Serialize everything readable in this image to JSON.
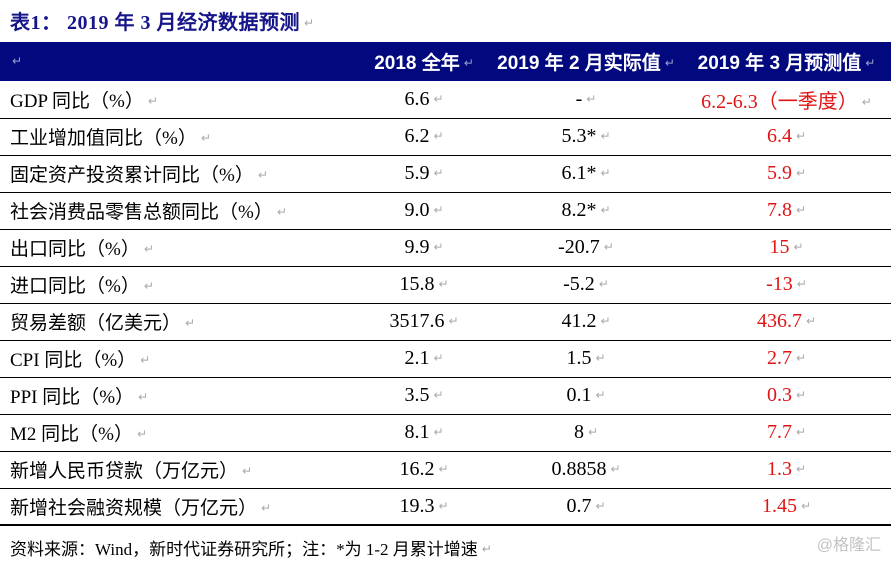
{
  "title": "表1： 2019 年 3 月经济数据预测",
  "colors": {
    "header_bg": "#02087e",
    "title_navy": "#16168a",
    "forecast_red": "#e01414",
    "watermark_gray": "#c2c2c2",
    "row_line": "#000000"
  },
  "icons": {
    "paragraph_mark": "↵"
  },
  "table": {
    "columns": [
      "",
      "2018 全年",
      "2019 年 2 月实际值",
      "2019 年 3 月预测值"
    ],
    "rows": [
      {
        "label": "GDP 同比（%）",
        "y2018": "6.6",
        "feb2019": "-",
        "mar2019": "6.2-6.3（一季度）"
      },
      {
        "label": "工业增加值同比（%）",
        "y2018": "6.2",
        "feb2019": "5.3*",
        "mar2019": "6.4"
      },
      {
        "label": "固定资产投资累计同比（%）",
        "y2018": "5.9",
        "feb2019": "6.1*",
        "mar2019": "5.9"
      },
      {
        "label": "社会消费品零售总额同比（%）",
        "y2018": "9.0",
        "feb2019": "8.2*",
        "mar2019": "7.8"
      },
      {
        "label": "出口同比（%）",
        "y2018": "9.9",
        "feb2019": "-20.7",
        "mar2019": "15"
      },
      {
        "label": "进口同比（%）",
        "y2018": "15.8",
        "feb2019": "-5.2",
        "mar2019": "-13"
      },
      {
        "label": "贸易差额（亿美元）",
        "y2018": "3517.6",
        "feb2019": "41.2",
        "mar2019": "436.7"
      },
      {
        "label": "CPI 同比（%）",
        "y2018": "2.1",
        "feb2019": "1.5",
        "mar2019": "2.7"
      },
      {
        "label": "PPI 同比（%）",
        "y2018": "3.5",
        "feb2019": "0.1",
        "mar2019": "0.3"
      },
      {
        "label": "M2 同比（%）",
        "y2018": "8.1",
        "feb2019": "8",
        "mar2019": "7.7"
      },
      {
        "label": "新增人民币贷款（万亿元）",
        "y2018": "16.2",
        "feb2019": "0.8858",
        "mar2019": "1.3"
      },
      {
        "label": "新增社会融资规模（万亿元）",
        "y2018": "19.3",
        "feb2019": "0.7",
        "mar2019": "1.45"
      }
    ]
  },
  "footer": {
    "source": "资料来源：Wind，新时代证券研究所；注：*为 1-2 月累计增速"
  },
  "watermark": "@格隆汇"
}
